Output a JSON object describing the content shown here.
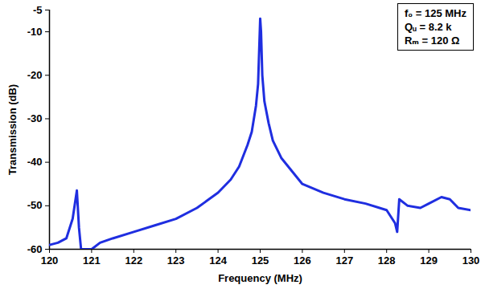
{
  "chart_data": {
    "type": "line",
    "x_label": "Frequency (MHz)",
    "y_label": "Transmission (dB)",
    "x": [
      120.0,
      120.2,
      120.4,
      120.55,
      120.65,
      120.7,
      120.75,
      121.0,
      121.2,
      121.5,
      122.0,
      122.5,
      123.0,
      123.5,
      124.0,
      124.3,
      124.5,
      124.7,
      124.8,
      124.9,
      124.95,
      125.0,
      125.02,
      125.05,
      125.1,
      125.2,
      125.3,
      125.5,
      125.75,
      126.0,
      126.5,
      127.0,
      127.5,
      128.0,
      128.2,
      128.25,
      128.3,
      128.5,
      128.8,
      129.0,
      129.3,
      129.5,
      129.7,
      130.0
    ],
    "values": [
      -59,
      -58.5,
      -57.5,
      -53,
      -46.5,
      -55,
      -60,
      -60,
      -58.5,
      -57.5,
      -56,
      -54.5,
      -53,
      -50.5,
      -47,
      -44,
      -41,
      -36,
      -33,
      -27,
      -22,
      -7,
      -10,
      -20,
      -26,
      -31,
      -35,
      -39,
      -42,
      -45,
      -47,
      -48.5,
      -49.5,
      -51,
      -54,
      -56,
      -48.5,
      -50,
      -50.5,
      -49.5,
      -48,
      -48.5,
      -50.5,
      -51
    ],
    "color": "#1f2ee0",
    "xlim": [
      120,
      130
    ],
    "xticks": [
      120,
      121,
      122,
      123,
      124,
      125,
      126,
      127,
      128,
      129,
      130
    ],
    "ylim": [
      -60,
      -5
    ],
    "yticks": [
      -5,
      -10,
      -20,
      -30,
      -40,
      -50,
      -60
    ],
    "annotations": [
      "f₀ = 125 MHz",
      "Qᵤ = 8.2 k",
      "Rₘ = 120 Ω"
    ],
    "grid": false
  }
}
